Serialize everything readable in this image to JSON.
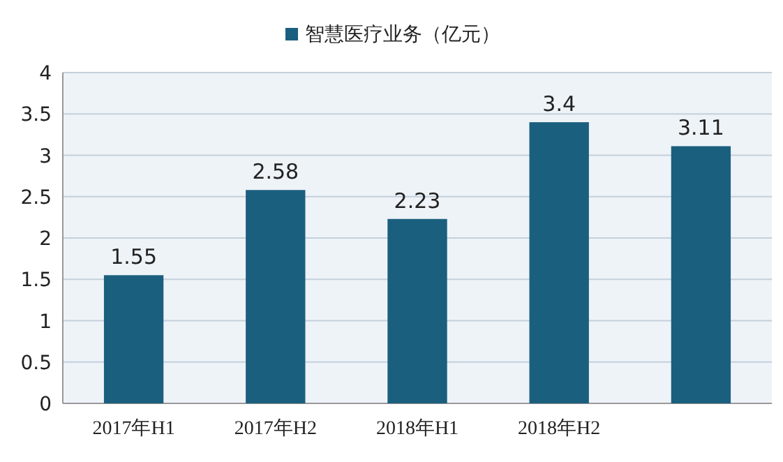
{
  "chart_data": {
    "type": "bar",
    "categories": [
      "2017年H1",
      "2017年H2",
      "2018年H1",
      "2018年H2",
      null
    ],
    "series": [
      {
        "name": "智慧医疗业务（亿元）",
        "color": "#1b5f7e",
        "values": [
          1.55,
          2.58,
          2.23,
          3.4,
          3.11
        ]
      }
    ],
    "ylim": [
      0,
      4
    ],
    "yticks": [
      0,
      0.5,
      1,
      1.5,
      2,
      2.5,
      3,
      3.5,
      4
    ],
    "grid": "y",
    "legend": "top",
    "data_labels": true
  }
}
